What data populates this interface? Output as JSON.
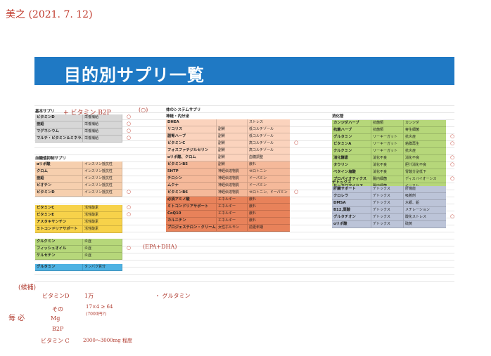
{
  "handwritten": {
    "header_note": "美之 (2021. 7. 12)",
    "next_to_basic": "+ ビタミン B2P",
    "bracket": "(○)",
    "epa_note": "(EPA+DHA)",
    "bottom_label": "(候補)",
    "line1_item": "ビタミンD",
    "line1_amount": "1万",
    "line1_extra": "・ グルタミン",
    "margin_left": "毎 必",
    "line2_item": "その",
    "line2_mg": "Mg",
    "line2_calc": "17×4 ≥ 64",
    "line2_calc_sub": "(7000円?)",
    "line3_item": "B2P",
    "line4_item": "ビタミン C",
    "line4_amount": "2000〜3000mg 程度"
  },
  "title": "目的別サプリ一覧",
  "columns": [
    {
      "id": "left",
      "sections": [
        {
          "heading": "基本サプリ",
          "rows": [
            {
              "name": "ビタミンD",
              "cat": "栄養補給",
              "mark": "○",
              "color": "#d7d7d7"
            },
            {
              "name": "亜鉛",
              "cat": "栄養補給",
              "mark": "○",
              "color": "#d7d7d7"
            },
            {
              "name": "マグネシウム",
              "cat": "栄養補給",
              "mark": "○",
              "color": "#d7d7d7"
            },
            {
              "name": "マルチ・ビタミン＆ミネラル",
              "cat": "栄養補給",
              "mark": "○",
              "color": "#d7d7d7"
            }
          ]
        },
        {
          "heading": "血糖値抑制サプリ",
          "rows": [
            {
              "name": "αリポ酸",
              "cat": "インスリン抵抗性",
              "mark": "",
              "color": "#f6cfae"
            },
            {
              "name": "クロム",
              "cat": "インスリン抵抗性",
              "mark": "",
              "color": "#f6cfae"
            },
            {
              "name": "亜鉛",
              "cat": "インスリン抵抗性",
              "mark": "",
              "color": "#f6cfae"
            },
            {
              "name": "ビオチン",
              "cat": "インスリン抵抗性",
              "mark": "",
              "color": "#f6cfae"
            },
            {
              "name": "ビタミンD",
              "cat": "インスリン抵抗性",
              "mark": "○",
              "color": "#f6cfae"
            }
          ]
        },
        {
          "heading": "",
          "rows": [
            {
              "name": "ビタミンC",
              "cat": "活性酸素",
              "mark": "○",
              "color": "#f7d24a"
            },
            {
              "name": "ビタミンE",
              "cat": "活性酸素",
              "mark": "○",
              "color": "#f7d24a"
            },
            {
              "name": "アスタキサンチン",
              "cat": "活性酸素",
              "mark": "",
              "color": "#f7d24a"
            },
            {
              "name": "ミトコンドリアサポート",
              "cat": "活性酸素",
              "mark": "",
              "color": "#f7d24a"
            }
          ]
        },
        {
          "heading": "",
          "rows": [
            {
              "name": "クルクミン",
              "cat": "炎症",
              "mark": "",
              "color": "#b6d77a"
            },
            {
              "name": "フィッシュオイル",
              "cat": "炎症",
              "mark": "○",
              "color": "#b6d77a"
            },
            {
              "name": "ケルセチン",
              "cat": "炎症",
              "mark": "",
              "color": "#b6d77a"
            }
          ]
        },
        {
          "heading": "",
          "rows": [
            {
              "name": "グルタミン",
              "cat": "タンパク質分",
              "mark": "",
              "color": "#4fb2e3"
            }
          ]
        }
      ]
    },
    {
      "id": "middle",
      "sections": [
        {
          "heading": "体のシステムサプリ",
          "subheading": "神経・内分泌",
          "rows": [
            {
              "name": "DHEA",
              "cat": "",
              "effect": "ストレス",
              "mark": "",
              "color": "#fbd3bd"
            },
            {
              "name": "リコリス",
              "cat": "副腎",
              "effect": "低コルチゾール",
              "mark": "",
              "color": "#fbd3bd"
            },
            {
              "name": "副腎ハーブ",
              "cat": "副腎",
              "effect": "低コルチゾール",
              "mark": "",
              "color": "#fbd3bd"
            },
            {
              "name": "ビタミンC",
              "cat": "副腎",
              "effect": "高コルチゾール",
              "mark": "○",
              "color": "#fbd3bd"
            },
            {
              "name": "フォスファチジルセリン",
              "cat": "副腎",
              "effect": "高コルチゾール",
              "mark": "",
              "color": "#fbd3bd"
            },
            {
              "name": "αリポ酸、クロム",
              "cat": "副腎",
              "effect": "血糖調整",
              "mark": "",
              "color": "#fbd3bd"
            },
            {
              "name": "ビタミンB5",
              "cat": "副腎",
              "effect": "疲れ",
              "mark": "",
              "color": "#f5b99a"
            },
            {
              "name": "5HTP",
              "cat": "神経伝達物質",
              "effect": "セロトニン",
              "mark": "",
              "color": "#f5b99a"
            },
            {
              "name": "チロシン",
              "cat": "神経伝達物質",
              "effect": "ドーパミン",
              "mark": "",
              "color": "#f5b99a"
            },
            {
              "name": "ムクナ",
              "cat": "神経伝達物質",
              "effect": "ドーパミン",
              "mark": "",
              "color": "#f5b99a"
            },
            {
              "name": "ビタミンB6",
              "cat": "神経伝達物質",
              "effect": "セロトニン、ドーパミン",
              "mark": "○",
              "color": "#f5b99a"
            },
            {
              "name": "必須アミノ酸",
              "cat": "エネルギー",
              "effect": "疲れ",
              "mark": "",
              "color": "#e8825a"
            },
            {
              "name": "ミトコンドリアサポート",
              "cat": "エネルギー",
              "effect": "疲れ",
              "mark": "",
              "color": "#e8825a"
            },
            {
              "name": "CoQ10",
              "cat": "エネルギー",
              "effect": "疲れ",
              "mark": "",
              "color": "#e8825a"
            },
            {
              "name": "カルニチン",
              "cat": "エネルギー",
              "effect": "疲れ",
              "mark": "",
              "color": "#e8825a"
            },
            {
              "name": "プロジェステロン・クリーム",
              "cat": "女性ホルモン",
              "effect": "前更年期",
              "mark": "",
              "color": "#e8825a"
            }
          ]
        }
      ]
    },
    {
      "id": "right",
      "sections": [
        {
          "heading": "消化管",
          "rows": [
            {
              "name": "カンジダハーブ",
              "cat": "抗菌類",
              "effect": "カンジダ",
              "mark": "",
              "color": "#b6d77a"
            },
            {
              "name": "抗菌ハーブ",
              "cat": "抗菌類",
              "effect": "寄生細菌",
              "mark": "",
              "color": "#b6d77a"
            },
            {
              "name": "グルタミン",
              "cat": "リーキーガット",
              "effect": "抗炎症",
              "mark": "○",
              "color": "#b6d77a"
            },
            {
              "name": "ビタミンA",
              "cat": "リーキーガット",
              "effect": "粘膜再生",
              "mark": "○",
              "color": "#b6d77a"
            },
            {
              "name": "クルクミン",
              "cat": "リーキーガット",
              "effect": "抗炎症",
              "mark": "",
              "color": "#b6d77a"
            },
            {
              "name": "消化酵素",
              "cat": "消化不良",
              "effect": "消化不良",
              "mark": "○",
              "color": "#b6d77a"
            },
            {
              "name": "タウリン",
              "cat": "消化不良",
              "effect": "胆汁消化不良",
              "mark": "○",
              "color": "#b6d77a"
            },
            {
              "name": "ベタイン塩酸",
              "cat": "消化不良",
              "effect": "胃酸分泌低下",
              "mark": "",
              "color": "#b6d77a"
            },
            {
              "name": "プロバイオティクス",
              "cat": "腸内細菌",
              "effect": "ディスバイオーシス",
              "mark": "○",
              "color": "#b6d77a"
            },
            {
              "name": "サッカロマイセス",
              "cat": "腸内細菌",
              "effect": "イースト",
              "mark": "",
              "color": "#b6d77a"
            }
          ]
        },
        {
          "heading": "デトックス",
          "rows": [
            {
              "name": "肝臓サポート",
              "cat": "デトックス",
              "effect": "肝機能",
              "mark": "",
              "color": "#bcc4d8"
            },
            {
              "name": "クロレラ",
              "cat": "デトックス",
              "effect": "吸着剤",
              "mark": "",
              "color": "#bcc4d8"
            },
            {
              "name": "DMSA",
              "cat": "デトックス",
              "effect": "水銀、鉛",
              "mark": "",
              "color": "#bcc4d8"
            },
            {
              "name": "B12,葉酸",
              "cat": "デトックス",
              "effect": "メチレーション",
              "mark": "",
              "color": "#bcc4d8"
            },
            {
              "name": "グルタチオン",
              "cat": "デトックス",
              "effect": "酸化ストレス",
              "mark": "○",
              "color": "#bcc4d8"
            },
            {
              "name": "αリポ酸",
              "cat": "デトックス",
              "effect": "硫黄",
              "mark": "",
              "color": "#bcc4d8"
            }
          ]
        }
      ]
    }
  ]
}
